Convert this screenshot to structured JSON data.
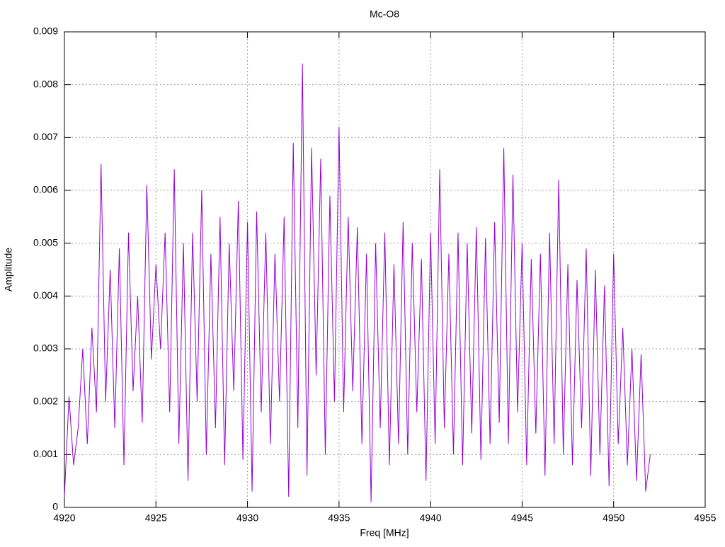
{
  "chart_data": {
    "type": "line",
    "title": "Mc-O8",
    "x_label": "Freq [MHz]",
    "y_label": "Amplitude",
    "color": "#9400d3",
    "grid": true,
    "x": [
      4920,
      4920.25,
      4920.5,
      4920.75,
      4921,
      4921.25,
      4921.5,
      4921.75,
      4922,
      4922.25,
      4922.5,
      4922.75,
      4923,
      4923.25,
      4923.5,
      4923.75,
      4924,
      4924.25,
      4924.5,
      4924.75,
      4925,
      4925.25,
      4925.5,
      4925.75,
      4926,
      4926.25,
      4926.5,
      4926.75,
      4927,
      4927.25,
      4927.5,
      4927.75,
      4928,
      4928.25,
      4928.5,
      4928.75,
      4929,
      4929.25,
      4929.5,
      4929.75,
      4930,
      4930.25,
      4930.5,
      4930.75,
      4931,
      4931.25,
      4931.5,
      4931.75,
      4932,
      4932.25,
      4932.5,
      4932.75,
      4933,
      4933.25,
      4933.5,
      4933.75,
      4934,
      4934.25,
      4934.5,
      4934.75,
      4935,
      4935.25,
      4935.5,
      4935.75,
      4936,
      4936.25,
      4936.5,
      4936.75,
      4937,
      4937.25,
      4937.5,
      4937.75,
      4938,
      4938.25,
      4938.5,
      4938.75,
      4939,
      4939.25,
      4939.5,
      4939.75,
      4940,
      4940.25,
      4940.5,
      4940.75,
      4941,
      4941.25,
      4941.5,
      4941.75,
      4942,
      4942.25,
      4942.5,
      4942.75,
      4943,
      4943.25,
      4943.5,
      4943.75,
      4944,
      4944.25,
      4944.5,
      4944.75,
      4945,
      4945.25,
      4945.5,
      4945.75,
      4946,
      4946.25,
      4946.5,
      4946.75,
      4947,
      4947.25,
      4947.5,
      4947.75,
      4948,
      4948.25,
      4948.5,
      4948.75,
      4949,
      4949.25,
      4949.5,
      4949.75,
      4950,
      4950.25,
      4950.5,
      4950.75,
      4951,
      4951.25,
      4951.5,
      4951.75,
      4952
    ],
    "values": [
      0.0002,
      0.0021,
      0.0008,
      0.0015,
      0.003,
      0.0012,
      0.0034,
      0.0018,
      0.0065,
      0.002,
      0.0045,
      0.0015,
      0.0049,
      0.0008,
      0.0052,
      0.0022,
      0.004,
      0.0016,
      0.0061,
      0.0028,
      0.0046,
      0.003,
      0.0052,
      0.0018,
      0.0064,
      0.0012,
      0.005,
      0.0005,
      0.0052,
      0.002,
      0.006,
      0.001,
      0.0048,
      0.0015,
      0.0055,
      0.0008,
      0.005,
      0.0022,
      0.0058,
      0.0009,
      0.0054,
      0.0003,
      0.0056,
      0.0018,
      0.0052,
      0.0012,
      0.0048,
      0.002,
      0.0055,
      0.0002,
      0.0069,
      0.0015,
      0.0084,
      0.0006,
      0.0068,
      0.0025,
      0.0066,
      0.001,
      0.0059,
      0.002,
      0.0072,
      0.0018,
      0.0055,
      0.0022,
      0.0053,
      0.0012,
      0.0048,
      0.0001,
      0.005,
      0.0015,
      0.0052,
      0.0008,
      0.0046,
      0.0012,
      0.0054,
      0.001,
      0.005,
      0.0018,
      0.0047,
      0.0005,
      0.0052,
      0.0012,
      0.0064,
      0.0015,
      0.0048,
      0.001,
      0.0052,
      0.0008,
      0.005,
      0.0014,
      0.0053,
      0.0009,
      0.0051,
      0.0012,
      0.0054,
      0.0016,
      0.0068,
      0.0012,
      0.0063,
      0.0018,
      0.005,
      0.0008,
      0.0047,
      0.0014,
      0.0048,
      0.0006,
      0.0052,
      0.0012,
      0.0062,
      0.001,
      0.0046,
      0.0008,
      0.0043,
      0.0015,
      0.0049,
      0.0006,
      0.0045,
      0.001,
      0.0042,
      0.0004,
      0.0048,
      0.0012,
      0.0034,
      0.0008,
      0.003,
      0.0005,
      0.0029,
      0.0003,
      0.001
    ],
    "xlim": [
      4920,
      4955
    ],
    "xticks": [
      4920,
      4925,
      4930,
      4935,
      4940,
      4945,
      4950,
      4955
    ],
    "ylim": [
      0,
      0.009
    ],
    "yticks": [
      0,
      0.001,
      0.002,
      0.003,
      0.004,
      0.005,
      0.006,
      0.007,
      0.008,
      0.009
    ]
  }
}
